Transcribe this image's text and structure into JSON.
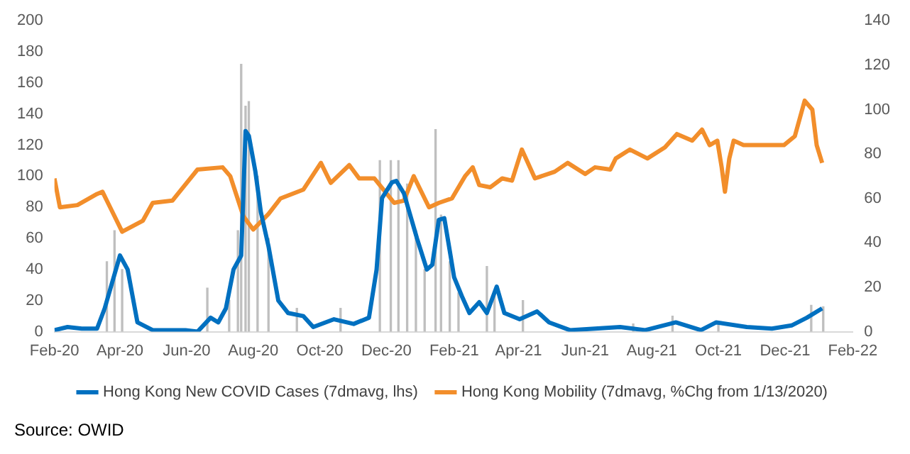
{
  "chart_data": {
    "type": "line",
    "legend": "bottom",
    "grid": false,
    "marker": "none",
    "xlim": [
      "2020-02-01",
      "2022-02-01"
    ],
    "xticks": [
      {
        "value": "2020-02-01",
        "label": "Feb-20"
      },
      {
        "value": "2020-04-01",
        "label": "Apr-20"
      },
      {
        "value": "2020-06-01",
        "label": "Jun-20"
      },
      {
        "value": "2020-08-01",
        "label": "Aug-20"
      },
      {
        "value": "2020-10-01",
        "label": "Oct-20"
      },
      {
        "value": "2020-12-01",
        "label": "Dec-20"
      },
      {
        "value": "2021-02-01",
        "label": "Feb-21"
      },
      {
        "value": "2021-04-01",
        "label": "Apr-21"
      },
      {
        "value": "2021-06-01",
        "label": "Jun-21"
      },
      {
        "value": "2021-08-01",
        "label": "Aug-21"
      },
      {
        "value": "2021-10-01",
        "label": "Oct-21"
      },
      {
        "value": "2021-12-01",
        "label": "Dec-21"
      },
      {
        "value": "2022-02-01",
        "label": "Feb-22"
      }
    ],
    "ylim": [
      0,
      200
    ],
    "yticks": [
      0,
      20,
      40,
      60,
      80,
      100,
      120,
      140,
      160,
      180,
      200
    ],
    "y2lim": [
      0,
      140
    ],
    "y2ticks": [
      0,
      20,
      40,
      60,
      80,
      100,
      120,
      140
    ],
    "annotations": [
      "Source: OWID"
    ],
    "series": [
      {
        "type": "bar",
        "color": "#bfbfbf",
        "x": [
          "2020-03-20",
          "2020-03-27",
          "2020-04-03",
          "2020-06-20",
          "2020-07-10",
          "2020-07-18",
          "2020-07-21",
          "2020-07-25",
          "2020-07-28",
          "2020-08-05",
          "2020-08-15",
          "2020-09-10",
          "2020-10-20",
          "2020-11-15",
          "2020-11-25",
          "2020-12-05",
          "2020-12-12",
          "2020-12-20",
          "2020-12-28",
          "2021-01-05",
          "2021-01-15",
          "2021-01-20",
          "2021-01-28",
          "2021-02-05",
          "2021-03-03",
          "2021-03-10",
          "2021-04-05",
          "2021-05-15",
          "2021-07-15",
          "2021-08-20",
          "2021-10-01",
          "2021-12-25",
          "2022-01-05"
        ],
        "values": [
          45,
          65,
          40,
          28,
          20,
          65,
          172,
          145,
          148,
          100,
          60,
          15,
          15,
          null,
          110,
          110,
          110,
          95,
          65,
          40,
          130,
          75,
          45,
          25,
          42,
          25,
          20,
          null,
          5,
          10,
          6,
          17,
          16
        ]
      },
      {
        "name": "Hong Kong New COVID Cases (7dmavg, lhs)",
        "color": "#0070c0",
        "x": [
          "2020-02-01",
          "2020-02-13",
          "2020-02-26",
          "2020-03-11",
          "2020-03-18",
          "2020-04-01",
          "2020-04-08",
          "2020-04-17",
          "2020-05-01",
          "2020-05-31",
          "2020-06-11",
          "2020-06-23",
          "2020-06-30",
          "2020-07-07",
          "2020-07-14",
          "2020-07-21",
          "2020-07-25",
          "2020-07-28",
          "2020-08-03",
          "2020-08-08",
          "2020-08-15",
          "2020-08-24",
          "2020-09-02",
          "2020-09-16",
          "2020-09-25",
          "2020-10-14",
          "2020-11-01",
          "2020-11-15",
          "2020-11-22",
          "2020-11-27",
          "2020-12-06",
          "2020-12-10",
          "2020-12-17",
          "2020-12-29",
          "2021-01-07",
          "2021-01-12",
          "2021-01-18",
          "2021-01-23",
          "2021-01-28",
          "2021-02-01",
          "2021-02-08",
          "2021-02-15",
          "2021-02-24",
          "2021-03-03",
          "2021-03-12",
          "2021-03-19",
          "2021-04-02",
          "2021-04-18",
          "2021-04-29",
          "2021-05-18",
          "2021-06-10",
          "2021-07-03",
          "2021-07-26",
          "2021-08-23",
          "2021-09-15",
          "2021-09-29",
          "2021-10-27",
          "2021-11-19",
          "2021-12-07",
          "2021-12-21",
          "2022-01-04"
        ],
        "values": [
          1,
          3,
          2,
          2,
          15,
          49,
          40,
          6,
          1,
          1,
          0,
          9,
          6,
          15,
          40,
          49,
          129,
          126,
          103,
          77,
          55,
          20,
          12,
          10,
          3,
          8,
          5,
          9,
          40,
          86,
          96,
          97,
          89,
          60,
          40,
          43,
          72,
          73,
          52,
          35,
          23,
          12,
          19,
          12,
          29,
          12,
          8,
          13,
          6,
          1,
          2,
          3,
          1,
          6,
          1,
          6,
          3,
          2,
          4,
          9,
          15
        ]
      },
      {
        "axis": "y2",
        "name": "Hong Kong Mobility (7dmavg, %Chg from 1/13/2020)",
        "color": "#f28e2b",
        "x": [
          "2020-02-01",
          "2020-02-06",
          "2020-02-22",
          "2020-03-11",
          "2020-03-16",
          "2020-03-23",
          "2020-04-03",
          "2020-04-22",
          "2020-05-01",
          "2020-05-19",
          "2020-06-11",
          "2020-07-04",
          "2020-07-11",
          "2020-07-23",
          "2020-08-01",
          "2020-08-15",
          "2020-08-26",
          "2020-09-16",
          "2020-10-02",
          "2020-10-11",
          "2020-10-28",
          "2020-11-06",
          "2020-11-20",
          "2020-12-08",
          "2020-12-17",
          "2020-12-26",
          "2021-01-09",
          "2021-01-18",
          "2021-01-30",
          "2021-02-11",
          "2021-02-18",
          "2021-02-24",
          "2021-03-06",
          "2021-03-17",
          "2021-03-26",
          "2021-04-04",
          "2021-04-16",
          "2021-05-04",
          "2021-05-16",
          "2021-06-01",
          "2021-06-10",
          "2021-06-24",
          "2021-06-29",
          "2021-07-12",
          "2021-07-28",
          "2021-08-13",
          "2021-08-24",
          "2021-09-07",
          "2021-09-16",
          "2021-09-23",
          "2021-09-30",
          "2021-10-04",
          "2021-10-07",
          "2021-10-11",
          "2021-10-15",
          "2021-10-24",
          "2021-11-12",
          "2021-11-30",
          "2021-12-10",
          "2021-12-19",
          "2021-12-26",
          "2021-12-30",
          "2022-01-04"
        ],
        "values": [
          69,
          56,
          57,
          62,
          63,
          56,
          45,
          50,
          58,
          59,
          73,
          74,
          70,
          52,
          46,
          53,
          60,
          64,
          76,
          67,
          75,
          69,
          69,
          58,
          59,
          70,
          56,
          58,
          60,
          70,
          74,
          66,
          65,
          69,
          68,
          82,
          69,
          72,
          76,
          71,
          74,
          73,
          78,
          82,
          78,
          83,
          89,
          86,
          91,
          84,
          86,
          74,
          63,
          78,
          86,
          84,
          84,
          84,
          88,
          104,
          100,
          84,
          76
        ]
      }
    ]
  }
}
